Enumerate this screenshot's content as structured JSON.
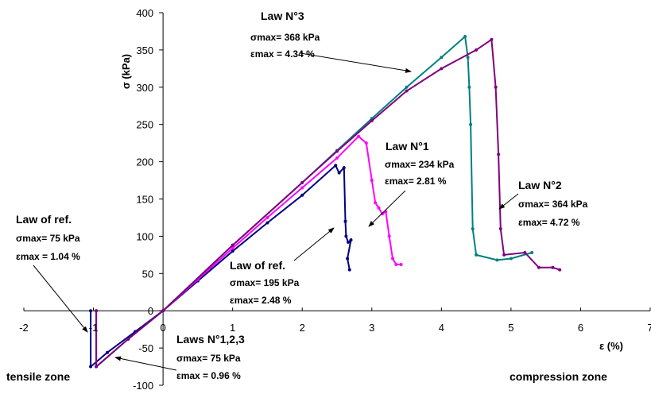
{
  "chart_data": {
    "type": "line",
    "xlabel": "ε (%)",
    "ylabel": "σ (kPa)",
    "xlim": [
      -2,
      7
    ],
    "ylim": [
      -100,
      400
    ],
    "x_ticks": [
      "-2",
      "-1",
      "0",
      "1",
      "2",
      "3",
      "4",
      "5",
      "6",
      "7"
    ],
    "y_ticks": [
      "-100",
      "-50",
      "0",
      "50",
      "100",
      "150",
      "200",
      "250",
      "300",
      "350",
      "400"
    ],
    "grid": false,
    "series": [
      {
        "color": "#000080",
        "points": [
          [
            -1.04,
            0
          ],
          [
            -1.04,
            -75
          ],
          [
            -0.8,
            -56
          ],
          [
            -0.4,
            -28
          ],
          [
            0,
            0
          ],
          [
            0.5,
            40
          ],
          [
            1.0,
            80
          ],
          [
            1.5,
            118
          ],
          [
            2.0,
            155
          ],
          [
            2.48,
            195
          ],
          [
            2.53,
            185
          ],
          [
            2.6,
            192
          ],
          [
            2.62,
            120
          ],
          [
            2.63,
            100
          ],
          [
            2.66,
            92
          ],
          [
            2.7,
            95
          ],
          [
            2.65,
            70
          ],
          [
            2.68,
            55
          ]
        ]
      },
      {
        "color": "#ff00ff",
        "points": [
          [
            0,
            0
          ],
          [
            0.5,
            42
          ],
          [
            1.0,
            84
          ],
          [
            1.5,
            125
          ],
          [
            2.0,
            165
          ],
          [
            2.5,
            205
          ],
          [
            2.81,
            234
          ],
          [
            2.92,
            225
          ],
          [
            3.0,
            175
          ],
          [
            3.05,
            145
          ],
          [
            3.1,
            138
          ],
          [
            3.15,
            130
          ],
          [
            3.2,
            133
          ],
          [
            3.25,
            100
          ],
          [
            3.3,
            70
          ],
          [
            3.35,
            62
          ],
          [
            3.42,
            62
          ]
        ]
      },
      {
        "color": "#008080",
        "points": [
          [
            -0.96,
            0
          ],
          [
            -0.96,
            -75
          ],
          [
            -0.5,
            -38
          ],
          [
            0,
            0
          ],
          [
            1.0,
            88
          ],
          [
            2.0,
            172
          ],
          [
            2.5,
            215
          ],
          [
            3.0,
            258
          ],
          [
            3.5,
            300
          ],
          [
            4.0,
            340
          ],
          [
            4.34,
            368
          ],
          [
            4.38,
            340
          ],
          [
            4.4,
            300
          ],
          [
            4.42,
            250
          ],
          [
            4.45,
            110
          ],
          [
            4.5,
            75
          ],
          [
            4.8,
            68
          ],
          [
            5.0,
            70
          ],
          [
            5.3,
            78
          ]
        ]
      },
      {
        "color": "#800080",
        "points": [
          [
            -0.96,
            0
          ],
          [
            -0.96,
            -75
          ],
          [
            -0.5,
            -38
          ],
          [
            0,
            0
          ],
          [
            1.0,
            88
          ],
          [
            2.0,
            172
          ],
          [
            2.5,
            214
          ],
          [
            3.0,
            255
          ],
          [
            3.5,
            295
          ],
          [
            4.0,
            325
          ],
          [
            4.5,
            350
          ],
          [
            4.72,
            364
          ],
          [
            4.78,
            300
          ],
          [
            4.82,
            210
          ],
          [
            4.85,
            110
          ],
          [
            4.9,
            75
          ],
          [
            5.2,
            78
          ],
          [
            5.4,
            58
          ],
          [
            5.6,
            58
          ],
          [
            5.7,
            55
          ]
        ]
      }
    ],
    "annotations": [
      {
        "title": "Law N°3",
        "smax": "σmax= 368 kPa",
        "emax": "εmax = 4.34 %"
      },
      {
        "title": "Law N°1",
        "smax": "σmax= 234 kPa",
        "emax": "εmax= 2.81 %"
      },
      {
        "title": "Law N°2",
        "smax": "σmax= 364 kPa",
        "emax": "εmax= 4.72 %"
      },
      {
        "title": "Law of ref.",
        "smax": "σmax= 75 kPa",
        "emax": "εmax = 1.04 %"
      },
      {
        "title": "Law of ref.",
        "smax": "σmax= 195 kPa",
        "emax": "εmax= 2.48 %"
      },
      {
        "title": "Laws N°1,2,3",
        "smax": "σmax= 75 kPa",
        "emax": "εmax = 0.96 %"
      }
    ],
    "zones": {
      "left": "tensile zone",
      "right": "compression zone"
    }
  }
}
